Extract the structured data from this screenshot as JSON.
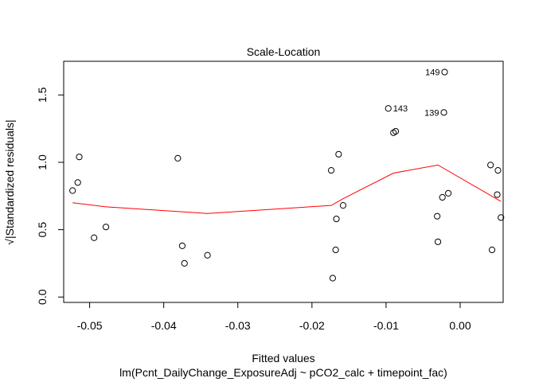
{
  "chart_data": {
    "type": "scatter",
    "title": "Scale-Location",
    "xlabel": "Fitted values",
    "sub_xlabel": "lm(Pcnt_DailyChange_ExposureAdj ~ pCO2_calc + timepoint_fac)",
    "ylabel": "√|Standardized residuals|",
    "xlim": [
      -0.0535,
      0.0058
    ],
    "ylim": [
      -0.04,
      1.75
    ],
    "xticks": [
      -0.05,
      -0.04,
      -0.03,
      -0.02,
      -0.01,
      0.0
    ],
    "xtick_labels": [
      "-0.05",
      "-0.04",
      "-0.03",
      "-0.02",
      "-0.01",
      "0.00"
    ],
    "yticks": [
      0.0,
      0.5,
      1.0,
      1.5
    ],
    "ytick_labels": [
      "0.0",
      "0.5",
      "1.0",
      "1.5"
    ],
    "grid": false,
    "points": [
      {
        "x": -0.0523,
        "y": 0.79
      },
      {
        "x": -0.0516,
        "y": 0.85
      },
      {
        "x": -0.0514,
        "y": 1.04
      },
      {
        "x": -0.0494,
        "y": 0.44
      },
      {
        "x": -0.0478,
        "y": 0.52
      },
      {
        "x": -0.0381,
        "y": 1.03
      },
      {
        "x": -0.0375,
        "y": 0.38
      },
      {
        "x": -0.0372,
        "y": 0.25
      },
      {
        "x": -0.0341,
        "y": 0.31
      },
      {
        "x": -0.0174,
        "y": 0.94
      },
      {
        "x": -0.0172,
        "y": 0.14
      },
      {
        "x": -0.0168,
        "y": 0.35
      },
      {
        "x": -0.0167,
        "y": 0.58
      },
      {
        "x": -0.0164,
        "y": 1.06
      },
      {
        "x": -0.0158,
        "y": 0.68
      },
      {
        "x": -0.0097,
        "y": 1.4
      },
      {
        "x": -0.009,
        "y": 1.22
      },
      {
        "x": -0.0087,
        "y": 1.23
      },
      {
        "x": -0.0031,
        "y": 0.6
      },
      {
        "x": -0.003,
        "y": 0.41
      },
      {
        "x": -0.0024,
        "y": 0.74
      },
      {
        "x": -0.0022,
        "y": 1.37
      },
      {
        "x": -0.0021,
        "y": 1.67
      },
      {
        "x": -0.0016,
        "y": 0.77
      },
      {
        "x": 0.0041,
        "y": 0.98
      },
      {
        "x": 0.0043,
        "y": 0.35
      },
      {
        "x": 0.005,
        "y": 0.76
      },
      {
        "x": 0.0051,
        "y": 0.94
      },
      {
        "x": 0.0055,
        "y": 0.59
      }
    ],
    "annotations": [
      {
        "label": "149",
        "x": -0.0021,
        "y": 1.67,
        "side": "left"
      },
      {
        "label": "143",
        "x": -0.0097,
        "y": 1.4,
        "side": "right"
      },
      {
        "label": "139",
        "x": -0.0022,
        "y": 1.37,
        "side": "left"
      }
    ],
    "smooth_line": {
      "color": "#ff0000",
      "points": [
        {
          "x": -0.0523,
          "y": 0.7
        },
        {
          "x": -0.0478,
          "y": 0.67
        },
        {
          "x": -0.0341,
          "y": 0.62
        },
        {
          "x": -0.0174,
          "y": 0.68
        },
        {
          "x": -0.0158,
          "y": 0.73
        },
        {
          "x": -0.009,
          "y": 0.92
        },
        {
          "x": -0.003,
          "y": 0.98
        },
        {
          "x": 0.0055,
          "y": 0.71
        }
      ]
    }
  }
}
